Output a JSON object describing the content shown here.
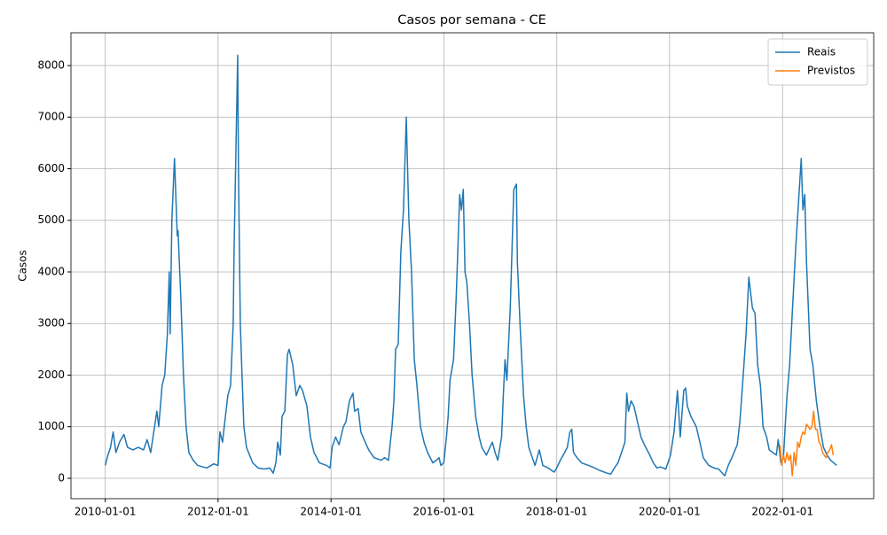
{
  "chart_data": {
    "type": "line",
    "title": "Casos por semana - CE",
    "ylabel": "Casos",
    "xlim": [
      "2009-05-24",
      "2023-08-14"
    ],
    "xticks": [
      "2010-01-01",
      "2012-01-01",
      "2014-01-01",
      "2016-01-01",
      "2018-01-01",
      "2020-01-01",
      "2022-01-01"
    ],
    "ylim": [
      -395,
      8635
    ],
    "yticks": [
      0,
      1000,
      2000,
      3000,
      4000,
      5000,
      6000,
      7000,
      8000
    ],
    "grid": true,
    "legend": "upper right",
    "series": [
      {
        "name": "Reais",
        "color": "#1f77b4",
        "x": [
          "2010-01-01",
          "2010-01-18",
          "2010-02-04",
          "2010-02-21",
          "2010-03-11",
          "2010-04-03",
          "2010-05-02",
          "2010-05-25",
          "2010-06-29",
          "2010-08-02",
          "2010-09-06",
          "2010-09-29",
          "2010-10-22",
          "2010-12-01",
          "2010-12-13",
          "2011-01-04",
          "2011-01-21",
          "2011-02-07",
          "2011-02-19",
          "2011-02-25",
          "2011-03-08",
          "2011-03-25",
          "2011-04-12",
          "2011-04-17",
          "2011-05-05",
          "2011-05-22",
          "2011-06-08",
          "2011-06-26",
          "2011-07-24",
          "2011-08-22",
          "2011-10-19",
          "2011-12-04",
          "2012-01-01",
          "2012-01-13",
          "2012-01-30",
          "2012-02-10",
          "2012-03-04",
          "2012-03-22",
          "2012-04-08",
          "2012-04-14",
          "2012-05-07",
          "2012-05-12",
          "2012-05-24",
          "2012-06-04",
          "2012-06-16",
          "2012-07-03",
          "2012-08-12",
          "2012-09-16",
          "2012-10-26",
          "2012-11-30",
          "2012-12-23",
          "2013-01-09",
          "2013-01-21",
          "2013-02-07",
          "2013-02-18",
          "2013-03-08",
          "2013-03-25",
          "2013-04-05",
          "2013-04-28",
          "2013-05-21",
          "2013-06-13",
          "2013-07-01",
          "2013-07-29",
          "2013-08-21",
          "2013-09-13",
          "2013-10-18",
          "2013-12-03",
          "2013-12-26",
          "2014-01-08",
          "2014-01-31",
          "2014-02-22",
          "2014-03-22",
          "2014-04-08",
          "2014-04-30",
          "2014-05-23",
          "2014-06-03",
          "2014-06-26",
          "2014-07-13",
          "2014-08-10",
          "2014-09-02",
          "2014-10-06",
          "2014-11-21",
          "2014-12-14",
          "2015-01-08",
          "2015-01-20",
          "2015-01-31",
          "2015-02-12",
          "2015-02-23",
          "2015-03-12",
          "2015-03-29",
          "2015-04-15",
          "2015-05-03",
          "2015-05-20",
          "2015-06-06",
          "2015-06-24",
          "2015-07-11",
          "2015-08-03",
          "2015-08-26",
          "2015-09-18",
          "2015-10-22",
          "2015-11-14",
          "2015-12-01",
          "2015-12-13",
          "2016-01-01",
          "2016-01-18",
          "2016-01-29",
          "2016-02-10",
          "2016-03-04",
          "2016-03-21",
          "2016-04-13",
          "2016-04-24",
          "2016-05-06",
          "2016-05-17",
          "2016-05-29",
          "2016-06-15",
          "2016-07-02",
          "2016-07-25",
          "2016-08-17",
          "2016-09-03",
          "2016-10-02",
          "2016-11-10",
          "2016-11-28",
          "2016-12-15",
          "2017-01-09",
          "2017-01-20",
          "2017-01-31",
          "2017-02-12",
          "2017-03-06",
          "2017-03-29",
          "2017-04-15",
          "2017-04-21",
          "2017-05-08",
          "2017-05-31",
          "2017-06-17",
          "2017-07-04",
          "2017-07-27",
          "2017-08-13",
          "2017-09-10",
          "2017-10-03",
          "2017-11-06",
          "2017-12-15",
          "2018-01-01",
          "2018-01-24",
          "2018-02-21",
          "2018-03-10",
          "2018-03-27",
          "2018-04-08",
          "2018-04-19",
          "2018-05-12",
          "2018-06-10",
          "2018-07-25",
          "2018-09-03",
          "2018-10-08",
          "2018-11-23",
          "2018-12-16",
          "2019-01-09",
          "2019-02-01",
          "2019-02-24",
          "2019-03-18",
          "2019-03-30",
          "2019-04-10",
          "2019-04-27",
          "2019-05-15",
          "2019-06-07",
          "2019-06-30",
          "2019-07-22",
          "2019-08-26",
          "2019-09-18",
          "2019-10-11",
          "2019-11-03",
          "2019-12-08",
          "2020-01-07",
          "2020-01-30",
          "2020-02-21",
          "2020-03-10",
          "2020-04-02",
          "2020-04-14",
          "2020-04-25",
          "2020-05-18",
          "2020-06-22",
          "2020-07-15",
          "2020-08-06",
          "2020-09-10",
          "2020-10-15",
          "2020-11-13",
          "2020-12-23",
          "2021-01-15",
          "2021-02-07",
          "2021-03-14",
          "2021-03-31",
          "2021-04-17",
          "2021-05-10",
          "2021-05-28",
          "2021-06-20",
          "2021-07-07",
          "2021-07-24",
          "2021-08-11",
          "2021-08-28",
          "2021-09-20",
          "2021-10-07",
          "2021-10-30",
          "2021-11-22",
          "2021-12-04",
          "2021-12-21",
          "2022-01-07",
          "2022-01-18",
          "2022-01-30",
          "2022-02-16",
          "2022-03-05",
          "2022-03-28",
          "2022-05-02",
          "2022-05-13",
          "2022-05-25",
          "2022-06-05",
          "2022-06-28",
          "2022-07-16",
          "2022-08-08",
          "2022-08-31",
          "2022-09-23",
          "2022-10-16",
          "2022-11-08",
          "2022-12-18"
        ],
        "values": [
          250,
          450,
          600,
          900,
          500,
          700,
          850,
          600,
          550,
          600,
          550,
          750,
          500,
          1300,
          1000,
          1800,
          2000,
          2800,
          4000,
          2800,
          5000,
          6200,
          4700,
          4800,
          3500,
          2000,
          1000,
          500,
          350,
          250,
          200,
          280,
          250,
          900,
          700,
          1000,
          1600,
          1800,
          3000,
          4500,
          8200,
          6000,
          3000,
          2000,
          1000,
          600,
          300,
          200,
          180,
          200,
          100,
          300,
          700,
          450,
          1200,
          1300,
          2400,
          2500,
          2200,
          1600,
          1800,
          1700,
          1400,
          800,
          500,
          300,
          250,
          200,
          600,
          800,
          650,
          1000,
          1100,
          1500,
          1650,
          1300,
          1350,
          900,
          700,
          550,
          400,
          350,
          400,
          350,
          700,
          1000,
          1500,
          2500,
          2600,
          4400,
          5200,
          7000,
          5000,
          4000,
          2300,
          1800,
          1000,
          700,
          500,
          300,
          350,
          400,
          250,
          300,
          800,
          1200,
          1900,
          2300,
          3500,
          5500,
          5200,
          5600,
          4000,
          3800,
          3000,
          2000,
          1200,
          800,
          600,
          450,
          700,
          500,
          350,
          800,
          1600,
          2300,
          1900,
          3300,
          5600,
          5700,
          4200,
          3000,
          1600,
          1000,
          600,
          400,
          250,
          550,
          250,
          200,
          120,
          200,
          350,
          500,
          600,
          900,
          950,
          500,
          400,
          300,
          250,
          200,
          150,
          100,
          80,
          200,
          300,
          500,
          700,
          1650,
          1300,
          1500,
          1400,
          1100,
          800,
          650,
          450,
          300,
          200,
          220,
          180,
          450,
          900,
          1700,
          800,
          1700,
          1750,
          1400,
          1200,
          1000,
          700,
          400,
          250,
          200,
          180,
          50,
          250,
          400,
          650,
          1100,
          1800,
          2800,
          3900,
          3300,
          3200,
          2200,
          1800,
          1000,
          800,
          550,
          500,
          450,
          750,
          300,
          400,
          1000,
          1600,
          2200,
          3200,
          4500,
          6200,
          5200,
          5500,
          4200,
          2500,
          2200,
          1500,
          1000,
          600,
          450,
          350,
          250
        ]
      },
      {
        "name": "Previstos",
        "color": "#ff7f0e",
        "x": [
          "2021-12-15",
          "2021-12-26",
          "2022-01-07",
          "2022-01-18",
          "2022-01-30",
          "2022-02-10",
          "2022-02-22",
          "2022-03-05",
          "2022-03-17",
          "2022-03-28",
          "2022-04-09",
          "2022-04-20",
          "2022-05-02",
          "2022-05-13",
          "2022-05-25",
          "2022-06-05",
          "2022-06-17",
          "2022-06-28",
          "2022-07-10",
          "2022-07-21",
          "2022-08-02",
          "2022-08-13",
          "2022-08-25",
          "2022-09-05",
          "2022-09-17",
          "2022-09-28",
          "2022-10-10",
          "2022-10-21",
          "2022-11-02",
          "2022-11-14",
          "2022-11-25"
        ],
        "values": [
          650,
          250,
          450,
          300,
          500,
          350,
          450,
          50,
          500,
          250,
          700,
          600,
          800,
          900,
          850,
          1050,
          1000,
          950,
          1000,
          1300,
          950,
          950,
          700,
          650,
          500,
          450,
          400,
          500,
          550,
          650,
          450
        ]
      }
    ]
  }
}
